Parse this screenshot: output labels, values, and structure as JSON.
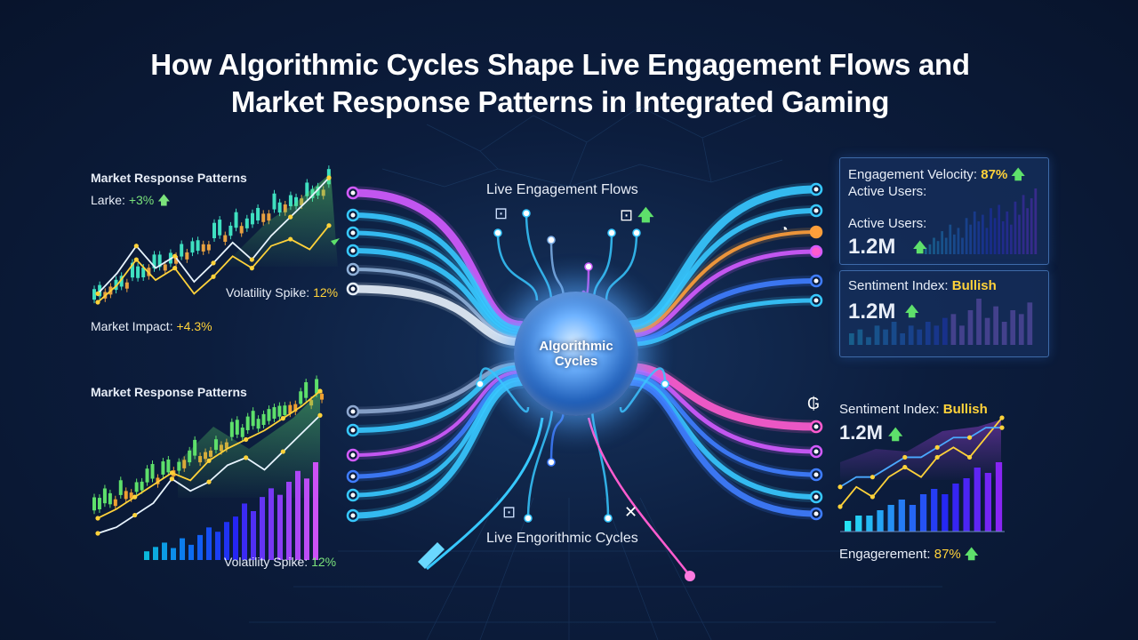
{
  "title_line1": "How Algorithmic Cycles Shape Live Engagement Flows and",
  "title_line2": "Market Response Patterns in Integrated Gaming",
  "hub": {
    "line1": "Algorithmic",
    "line2": "Cycles"
  },
  "center": {
    "top_label": "Live Engagement Flows",
    "bottom_label": "Live Engorithmic Cycles",
    "icons": [
      "gamepad-icon",
      "gamepad-icon",
      "gamepad-icon",
      "joystick-icon"
    ]
  },
  "left_top": {
    "title": "Market Response Patterns",
    "ticker_label": "Larke:",
    "ticker_value": "+3%",
    "volatility_label": "Volatility Spike:",
    "volatility_value": "12%",
    "impact_label": "Market Impact:",
    "impact_value": "+4.3%"
  },
  "left_bottom": {
    "title": "Market Response Patterns",
    "volatility_label": "Volatility Spike:",
    "volatility_value": "12%"
  },
  "right_card1": {
    "line1_label": "Engagement Velocity:",
    "line1_value": "87%",
    "line2": "Active Users:",
    "line3": "Active Users:",
    "value": "1.2M"
  },
  "right_card2": {
    "label": "Sentiment Index:",
    "state": "Bullish",
    "value": "1.2M"
  },
  "right_bottom": {
    "label": "Sentiment Index:",
    "state": "Bullish",
    "value": "1.2M",
    "footer_label": "Engagerement:",
    "footer_value": "87%"
  },
  "colors": {
    "cyan": "#37c8ff",
    "blue": "#3f7dff",
    "magenta": "#d35bff",
    "pink": "#ff5ccf",
    "green": "#5ee06b",
    "yellow": "#ffd23a",
    "orange": "#f0a030"
  },
  "chart_data": [
    {
      "type": "line",
      "series": [
        {
          "values": [
            40,
            52,
            68,
            55,
            62,
            47,
            58,
            70,
            60,
            74,
            85,
            96,
            108
          ]
        },
        {
          "values": [
            35,
            45,
            60,
            48,
            55,
            40,
            50,
            62,
            55,
            68,
            72,
            66,
            80
          ]
        }
      ]
    },
    {
      "type": "line",
      "series": [
        {
          "values": [
            20,
            26,
            34,
            42,
            50,
            45,
            58,
            66,
            72,
            78,
            86,
            94,
            104
          ]
        },
        {
          "values": [
            10,
            14,
            22,
            30,
            46,
            38,
            44,
            55,
            60,
            52,
            64,
            76,
            88
          ]
        }
      ]
    },
    {
      "type": "bar",
      "values": [
        8,
        12,
        16,
        11,
        20,
        14,
        23,
        30,
        26,
        35,
        40,
        52,
        45,
        58,
        66,
        60,
        72,
        82,
        75,
        90
      ]
    },
    {
      "type": "bar",
      "values": [
        2,
        3,
        5,
        4,
        7,
        5,
        9,
        6,
        8,
        5,
        11,
        9,
        13,
        10,
        12,
        8,
        14,
        11,
        15,
        10,
        13,
        9,
        16,
        12,
        18,
        14,
        17,
        20
      ]
    },
    {
      "type": "bar",
      "values": [
        3,
        4,
        2,
        5,
        4,
        6,
        3,
        5,
        4,
        6,
        5,
        7,
        8,
        5,
        9,
        12,
        7,
        10,
        6,
        9,
        8,
        11
      ]
    },
    {
      "type": "line",
      "series": [
        {
          "values": [
            2,
            4,
            3,
            5,
            6,
            5,
            7,
            8,
            7,
            9,
            11
          ]
        },
        {
          "values": [
            4,
            5,
            5,
            6,
            7,
            7,
            8,
            9,
            9,
            10,
            10
          ]
        }
      ]
    },
    {
      "type": "bar",
      "values": [
        2,
        3,
        3,
        4,
        5,
        6,
        5,
        7,
        8,
        7,
        9,
        10,
        12,
        11,
        13
      ]
    }
  ]
}
